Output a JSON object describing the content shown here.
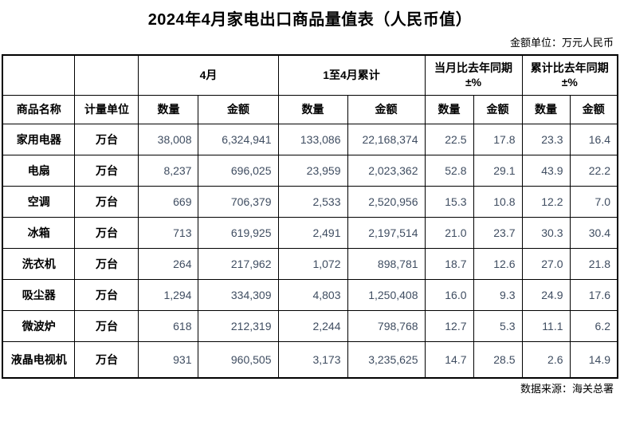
{
  "title": "2024年4月家电出口商品量值表（人民币值）",
  "unit_note": "金额单位：万元人民币",
  "source_note": "数据来源：海关总署",
  "colors": {
    "number_text": "#3f4d61",
    "border": "#000000",
    "background": "#ffffff"
  },
  "table": {
    "groups": [
      {
        "label": "4月",
        "sub": ""
      },
      {
        "label": "1至4月累计",
        "sub": ""
      },
      {
        "label": "当月比去年同期",
        "sub": "±%"
      },
      {
        "label": "累计比去年同期",
        "sub": "±%"
      }
    ],
    "headers": [
      "商品名称",
      "计量单位",
      "数量",
      "金额",
      "数量",
      "金额",
      "数量",
      "金额",
      "数量",
      "金额"
    ],
    "rows": [
      {
        "name": "家用电器",
        "unit": "万台",
        "values": [
          "38,008",
          "6,324,941",
          "133,086",
          "22,168,374",
          "22.5",
          "17.8",
          "23.3",
          "16.4"
        ]
      },
      {
        "name": "电扇",
        "unit": "万台",
        "values": [
          "8,237",
          "696,025",
          "23,959",
          "2,023,362",
          "52.8",
          "29.1",
          "43.9",
          "22.2"
        ]
      },
      {
        "name": "空调",
        "unit": "万台",
        "values": [
          "669",
          "706,379",
          "2,533",
          "2,520,956",
          "15.3",
          "10.8",
          "12.2",
          "7.0"
        ]
      },
      {
        "name": "冰箱",
        "unit": "万台",
        "values": [
          "713",
          "619,925",
          "2,491",
          "2,197,514",
          "21.0",
          "23.7",
          "30.3",
          "30.4"
        ]
      },
      {
        "name": "洗衣机",
        "unit": "万台",
        "values": [
          "264",
          "217,962",
          "1,072",
          "898,781",
          "18.7",
          "12.6",
          "27.0",
          "21.8"
        ]
      },
      {
        "name": "吸尘器",
        "unit": "万台",
        "values": [
          "1,294",
          "334,309",
          "4,803",
          "1,250,408",
          "16.0",
          "9.3",
          "24.9",
          "17.6"
        ]
      },
      {
        "name": "微波炉",
        "unit": "万台",
        "values": [
          "618",
          "212,319",
          "2,244",
          "798,768",
          "12.7",
          "5.3",
          "11.1",
          "6.2"
        ]
      },
      {
        "name": "液晶电视机",
        "unit": "万台",
        "values": [
          "931",
          "960,505",
          "3,173",
          "3,235,625",
          "14.7",
          "28.5",
          "2.6",
          "14.9"
        ]
      }
    ]
  }
}
